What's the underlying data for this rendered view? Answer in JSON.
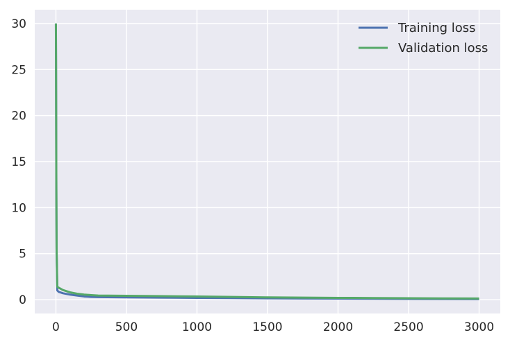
{
  "chart_data": {
    "type": "line",
    "title": "",
    "xlabel": "",
    "ylabel": "",
    "xlim": [
      -150,
      3150
    ],
    "ylim": [
      -1.5,
      31.5
    ],
    "x_ticks": [
      0,
      500,
      1000,
      1500,
      2000,
      2500,
      3000
    ],
    "y_ticks": [
      0,
      5,
      10,
      15,
      20,
      25,
      30
    ],
    "grid": true,
    "legend_position": "top-right",
    "series": [
      {
        "name": "Training loss",
        "color": "#4c72b0",
        "x": [
          0,
          1,
          3,
          5,
          10,
          20,
          50,
          100,
          150,
          200,
          250,
          300,
          500,
          750,
          1000,
          1250,
          1500,
          1750,
          2000,
          2250,
          2500,
          2750,
          3000
        ],
        "y": [
          30,
          25,
          12,
          5,
          1.0,
          0.85,
          0.7,
          0.55,
          0.45,
          0.35,
          0.3,
          0.28,
          0.25,
          0.22,
          0.2,
          0.18,
          0.15,
          0.13,
          0.12,
          0.1,
          0.08,
          0.07,
          0.06
        ]
      },
      {
        "name": "Validation loss",
        "color": "#55a868",
        "x": [
          0,
          1,
          3,
          5,
          10,
          20,
          50,
          100,
          150,
          200,
          250,
          300,
          500,
          750,
          1000,
          1250,
          1500,
          1750,
          2000,
          2250,
          2500,
          2750,
          3000
        ],
        "y": [
          30,
          26,
          13,
          5.5,
          1.4,
          1.3,
          1.05,
          0.8,
          0.65,
          0.55,
          0.5,
          0.45,
          0.42,
          0.38,
          0.35,
          0.3,
          0.25,
          0.22,
          0.2,
          0.18,
          0.16,
          0.14,
          0.13
        ]
      }
    ]
  }
}
